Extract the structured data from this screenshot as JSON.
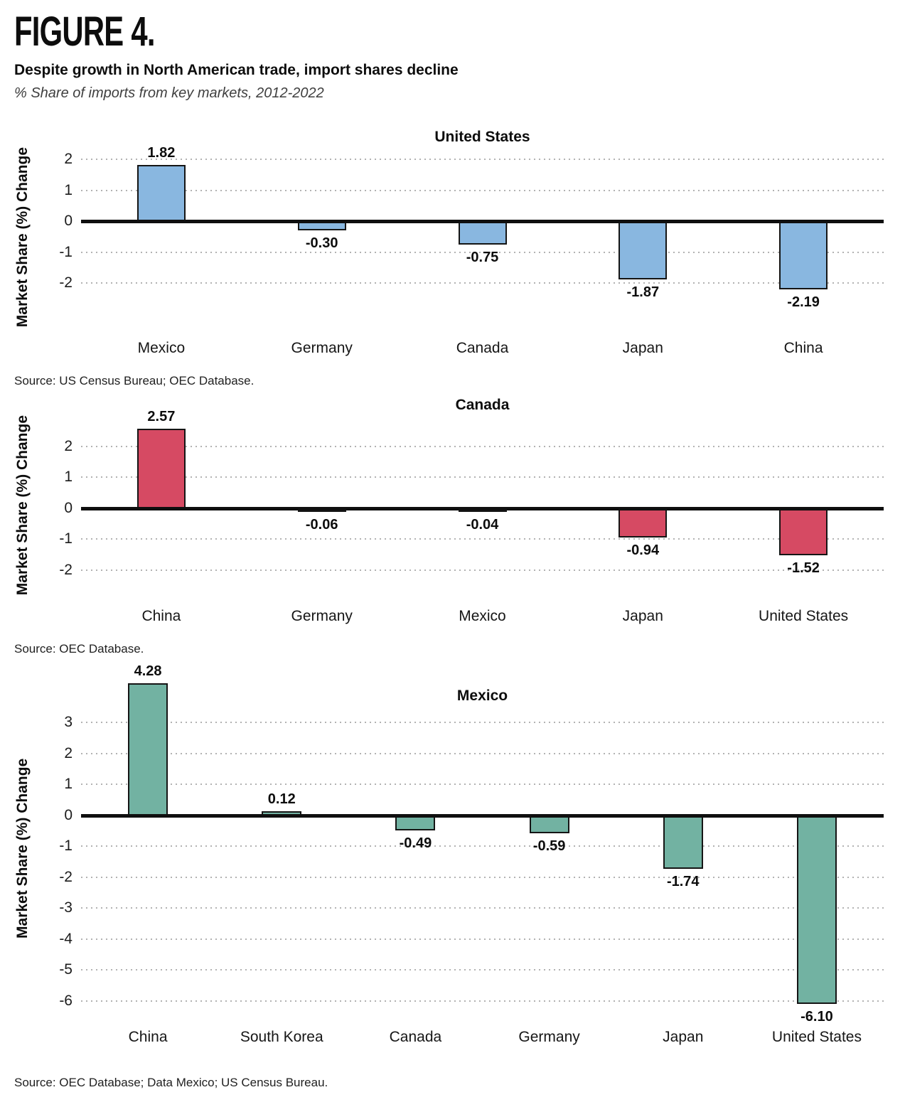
{
  "header": {
    "figure_label": "FIGURE 4.",
    "title": "Despite growth in North American trade, import shares decline",
    "subtitle": "% Share of imports from key markets, 2012-2022"
  },
  "chart_data": [
    {
      "type": "bar",
      "title": "United States",
      "ylabel": "Market Share (%) Change",
      "xlabel": "",
      "categories": [
        "Mexico",
        "Germany",
        "Canada",
        "Japan",
        "China"
      ],
      "values": [
        1.82,
        -0.3,
        -0.75,
        -1.87,
        -2.19
      ],
      "value_labels": [
        "1.82",
        "-0.30",
        "-0.75",
        "-1.87",
        "-2.19"
      ],
      "ticks": [
        2,
        1,
        0,
        -1,
        -2
      ],
      "ylim": [
        -2.65,
        2.4
      ],
      "grid": "dotted horizontal",
      "legend": "none",
      "bar_color": "#89b7e0",
      "bar_border_color": "#151515",
      "source": "Source: US Census Bureau; OEC Database."
    },
    {
      "type": "bar",
      "title": "Canada",
      "ylabel": "Market Share (%) Change",
      "xlabel": "",
      "categories": [
        "China",
        "Germany",
        "Mexico",
        "Japan",
        "United States"
      ],
      "values": [
        2.57,
        -0.06,
        -0.04,
        -0.94,
        -1.52
      ],
      "value_labels": [
        "2.57",
        "-0.06",
        "-0.04",
        "-0.94",
        "-1.52"
      ],
      "ticks": [
        2,
        1,
        0,
        -1,
        -2
      ],
      "ylim": [
        -2.4,
        3.0
      ],
      "grid": "dotted horizontal",
      "legend": "none",
      "bar_color": "#d64a63",
      "bar_border_color": "#151515",
      "source": "Source: OEC Database."
    },
    {
      "type": "bar",
      "title": "Mexico",
      "ylabel": "Market Share (%) Change",
      "xlabel": "",
      "categories": [
        "China",
        "South Korea",
        "Canada",
        "Germany",
        "Japan",
        "United States"
      ],
      "values": [
        4.28,
        0.12,
        -0.49,
        -0.59,
        -1.74,
        -6.1
      ],
      "value_labels": [
        "4.28",
        "0.12",
        "-0.49",
        "-0.59",
        "-1.74",
        "-6.10"
      ],
      "ticks": [
        3,
        2,
        1,
        0,
        -1,
        -2,
        -3,
        -4,
        -5,
        -6
      ],
      "ylim": [
        -6.5,
        4.35
      ],
      "grid": "dotted horizontal",
      "legend": "none",
      "bar_color": "#72b2a2",
      "bar_border_color": "#151515",
      "source": "Source: OEC Database; Data Mexico; US Census Bureau."
    }
  ]
}
